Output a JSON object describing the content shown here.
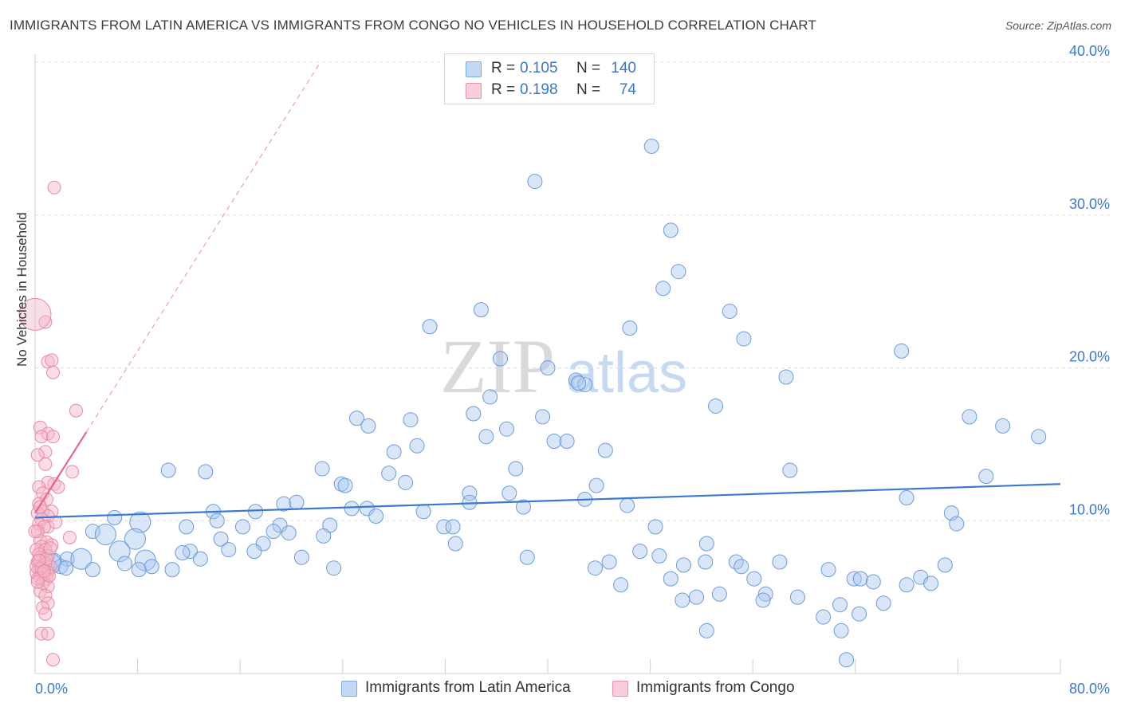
{
  "title": "IMMIGRANTS FROM LATIN AMERICA VS IMMIGRANTS FROM CONGO NO VEHICLES IN HOUSEHOLD CORRELATION CHART",
  "source": "Source: ZipAtlas.com",
  "watermark": {
    "zip": "ZIP",
    "atlas": "atlas"
  },
  "stats": [
    {
      "r_label": "R =",
      "r_value": "0.105",
      "n_label": "N =",
      "n_value": "140",
      "color": "#a8c8f0"
    },
    {
      "r_label": "R =",
      "r_value": "0.198",
      "n_label": "N =",
      "n_value": "74",
      "color": "#f4b6c8"
    }
  ],
  "legend": [
    {
      "label": "Immigrants from Latin America",
      "color": "#a8c8f0"
    },
    {
      "label": "Immigrants from Congo",
      "color": "#f4b6c8"
    }
  ],
  "colors": {
    "blue": "#3b78d2",
    "pink": "#e8668e",
    "axis_text": "#3b78d2"
  },
  "chart_data": {
    "type": "scatter",
    "title": "IMMIGRANTS FROM LATIN AMERICA VS IMMIGRANTS FROM CONGO NO VEHICLES IN HOUSEHOLD CORRELATION CHART",
    "xlabel": "",
    "ylabel": "No Vehicles in Household",
    "xlim": [
      0,
      80
    ],
    "ylim": [
      0,
      40
    ],
    "x_tick_labels": [
      "0.0%",
      "80.0%"
    ],
    "y_ticks": [
      10,
      20,
      30,
      40
    ],
    "y_tick_labels": [
      "10.0%",
      "20.0%",
      "30.0%",
      "40.0%"
    ],
    "grid": true,
    "series": [
      {
        "name": "Immigrants from Latin America",
        "color": "#a8c8f0",
        "trend": {
          "x": [
            0,
            80
          ],
          "y": [
            10.2,
            12.4
          ]
        },
        "points": [
          [
            48.1,
            34.5
          ],
          [
            39.0,
            32.2
          ],
          [
            49.6,
            29.0
          ],
          [
            50.2,
            26.3
          ],
          [
            49.0,
            25.2
          ],
          [
            54.2,
            23.7
          ],
          [
            34.8,
            23.8
          ],
          [
            30.8,
            22.7
          ],
          [
            46.4,
            22.6
          ],
          [
            55.3,
            21.9
          ],
          [
            67.6,
            21.1
          ],
          [
            36.3,
            20.6
          ],
          [
            40.0,
            20.0
          ],
          [
            42.2,
            19.2
          ],
          [
            42.9,
            18.9
          ],
          [
            42.4,
            19.0
          ],
          [
            58.6,
            19.4
          ],
          [
            35.5,
            18.1
          ],
          [
            53.1,
            17.5
          ],
          [
            34.2,
            17.0
          ],
          [
            25.1,
            16.7
          ],
          [
            29.3,
            16.6
          ],
          [
            39.6,
            16.8
          ],
          [
            72.9,
            16.8
          ],
          [
            26.0,
            16.2
          ],
          [
            36.8,
            16.0
          ],
          [
            75.5,
            16.2
          ],
          [
            78.3,
            15.5
          ],
          [
            35.2,
            15.5
          ],
          [
            40.5,
            15.2
          ],
          [
            41.5,
            15.2
          ],
          [
            29.8,
            14.9
          ],
          [
            28.0,
            14.5
          ],
          [
            44.5,
            14.6
          ],
          [
            10.4,
            13.3
          ],
          [
            13.3,
            13.2
          ],
          [
            22.4,
            13.4
          ],
          [
            37.5,
            13.4
          ],
          [
            58.9,
            13.3
          ],
          [
            27.6,
            13.1
          ],
          [
            74.2,
            12.9
          ],
          [
            23.9,
            12.4
          ],
          [
            24.2,
            12.3
          ],
          [
            28.9,
            12.5
          ],
          [
            43.8,
            12.3
          ],
          [
            33.9,
            11.8
          ],
          [
            37.0,
            11.8
          ],
          [
            42.9,
            11.4
          ],
          [
            33.9,
            11.2
          ],
          [
            19.4,
            11.1
          ],
          [
            20.4,
            11.2
          ],
          [
            68.0,
            11.5
          ],
          [
            46.2,
            11.0
          ],
          [
            24.7,
            10.8
          ],
          [
            25.9,
            10.8
          ],
          [
            38.1,
            10.9
          ],
          [
            13.9,
            10.6
          ],
          [
            17.2,
            10.6
          ],
          [
            30.3,
            10.6
          ],
          [
            71.5,
            10.5
          ],
          [
            26.6,
            10.3
          ],
          [
            6.2,
            10.2
          ],
          [
            14.2,
            10.0
          ],
          [
            8.2,
            9.9
          ],
          [
            19.1,
            9.7
          ],
          [
            23.0,
            9.7
          ],
          [
            31.9,
            9.6
          ],
          [
            32.6,
            9.6
          ],
          [
            4.5,
            9.3
          ],
          [
            5.5,
            9.1
          ],
          [
            11.8,
            9.6
          ],
          [
            16.2,
            9.6
          ],
          [
            18.6,
            9.3
          ],
          [
            19.8,
            9.2
          ],
          [
            48.4,
            9.6
          ],
          [
            71.9,
            9.8
          ],
          [
            22.5,
            9.0
          ],
          [
            14.5,
            8.8
          ],
          [
            7.8,
            8.8
          ],
          [
            17.8,
            8.5
          ],
          [
            32.8,
            8.5
          ],
          [
            52.4,
            8.5
          ],
          [
            15.1,
            8.1
          ],
          [
            12.1,
            8.0
          ],
          [
            6.6,
            8.0
          ],
          [
            11.5,
            7.9
          ],
          [
            17.1,
            8.0
          ],
          [
            47.2,
            8.0
          ],
          [
            48.7,
            7.7
          ],
          [
            38.4,
            7.6
          ],
          [
            20.8,
            7.6
          ],
          [
            12.9,
            7.5
          ],
          [
            2.5,
            7.5
          ],
          [
            3.6,
            7.5
          ],
          [
            1.5,
            7.4
          ],
          [
            7.0,
            7.2
          ],
          [
            8.6,
            7.4
          ],
          [
            9.1,
            7.0
          ],
          [
            2.0,
            7.0
          ],
          [
            1.2,
            7.2
          ],
          [
            4.5,
            6.8
          ],
          [
            2.4,
            6.9
          ],
          [
            10.7,
            6.8
          ],
          [
            58.1,
            7.3
          ],
          [
            61.9,
            6.8
          ],
          [
            52.3,
            7.3
          ],
          [
            54.7,
            7.3
          ],
          [
            55.1,
            7.0
          ],
          [
            44.8,
            7.3
          ],
          [
            43.7,
            6.9
          ],
          [
            50.6,
            7.1
          ],
          [
            23.3,
            6.9
          ],
          [
            8.1,
            6.8
          ],
          [
            71.0,
            7.1
          ],
          [
            63.9,
            6.2
          ],
          [
            64.4,
            6.2
          ],
          [
            49.6,
            6.2
          ],
          [
            56.1,
            6.2
          ],
          [
            69.1,
            6.3
          ],
          [
            69.9,
            5.9
          ],
          [
            65.4,
            6.0
          ],
          [
            68.0,
            5.8
          ],
          [
            45.7,
            5.8
          ],
          [
            53.4,
            5.2
          ],
          [
            57.0,
            5.2
          ],
          [
            59.5,
            5.0
          ],
          [
            51.6,
            5.0
          ],
          [
            50.5,
            4.8
          ],
          [
            56.8,
            4.8
          ],
          [
            66.2,
            4.6
          ],
          [
            62.8,
            4.5
          ],
          [
            64.3,
            3.9
          ],
          [
            61.5,
            3.7
          ],
          [
            52.4,
            2.8
          ],
          [
            62.9,
            2.8
          ],
          [
            63.3,
            0.9
          ]
        ]
      },
      {
        "name": "Immigrants from Congo",
        "color": "#f4b6c8",
        "trend": {
          "x": [
            0,
            4.0
          ],
          "y": [
            10.5,
            15.8
          ]
        },
        "points": [
          [
            1.5,
            31.8
          ],
          [
            0.8,
            23.0
          ],
          [
            1.0,
            20.4
          ],
          [
            1.3,
            20.5
          ],
          [
            1.4,
            19.7
          ],
          [
            3.2,
            17.2
          ],
          [
            0.4,
            16.1
          ],
          [
            1.0,
            15.7
          ],
          [
            0.5,
            15.5
          ],
          [
            1.4,
            15.5
          ],
          [
            0.8,
            14.5
          ],
          [
            0.8,
            13.7
          ],
          [
            2.9,
            13.2
          ],
          [
            1.5,
            12.4
          ],
          [
            1.0,
            12.5
          ],
          [
            1.8,
            12.2
          ],
          [
            0.3,
            12.2
          ],
          [
            0.6,
            11.8
          ],
          [
            0.9,
            11.4
          ],
          [
            0.3,
            11.1
          ],
          [
            1.3,
            10.6
          ],
          [
            0.6,
            10.6
          ],
          [
            0.2,
            10.5
          ],
          [
            1.0,
            10.3
          ],
          [
            0.5,
            10.1
          ],
          [
            0.3,
            9.8
          ],
          [
            1.0,
            9.6
          ],
          [
            1.6,
            9.9
          ],
          [
            0.7,
            9.6
          ],
          [
            0.2,
            9.3
          ],
          [
            2.7,
            8.9
          ],
          [
            0.4,
            8.7
          ],
          [
            0.9,
            8.6
          ],
          [
            1.3,
            8.4
          ],
          [
            0.5,
            8.3
          ],
          [
            0.1,
            8.1
          ],
          [
            0.8,
            8.1
          ],
          [
            1.0,
            7.7
          ],
          [
            0.4,
            7.6
          ],
          [
            0.2,
            7.3
          ],
          [
            0.6,
            7.1
          ],
          [
            1.2,
            7.0
          ],
          [
            0.8,
            7.2
          ],
          [
            0.3,
            6.9
          ],
          [
            0.5,
            6.6
          ],
          [
            0.1,
            6.6
          ],
          [
            1.0,
            6.6
          ],
          [
            0.7,
            6.5
          ],
          [
            0.4,
            6.3
          ],
          [
            0.2,
            6.2
          ],
          [
            0.9,
            6.2
          ],
          [
            0.6,
            5.9
          ],
          [
            1.0,
            5.7
          ],
          [
            0.4,
            5.4
          ],
          [
            0.8,
            5.1
          ],
          [
            1.0,
            4.6
          ],
          [
            0.6,
            4.3
          ],
          [
            0.8,
            3.9
          ],
          [
            0.5,
            2.6
          ],
          [
            1.0,
            2.6
          ],
          [
            1.4,
            0.9
          ],
          [
            0.3,
            7.8
          ],
          [
            0.1,
            7.0
          ],
          [
            0.0,
            23.5
          ],
          [
            0.2,
            6.0
          ],
          [
            0.5,
            6.9
          ],
          [
            0.9,
            7.5
          ],
          [
            1.1,
            6.4
          ],
          [
            0.3,
            7.4
          ],
          [
            0.7,
            6.7
          ],
          [
            0.0,
            9.3
          ],
          [
            0.4,
            10.9
          ],
          [
            0.2,
            14.3
          ],
          [
            1.2,
            8.2
          ]
        ]
      }
    ]
  }
}
